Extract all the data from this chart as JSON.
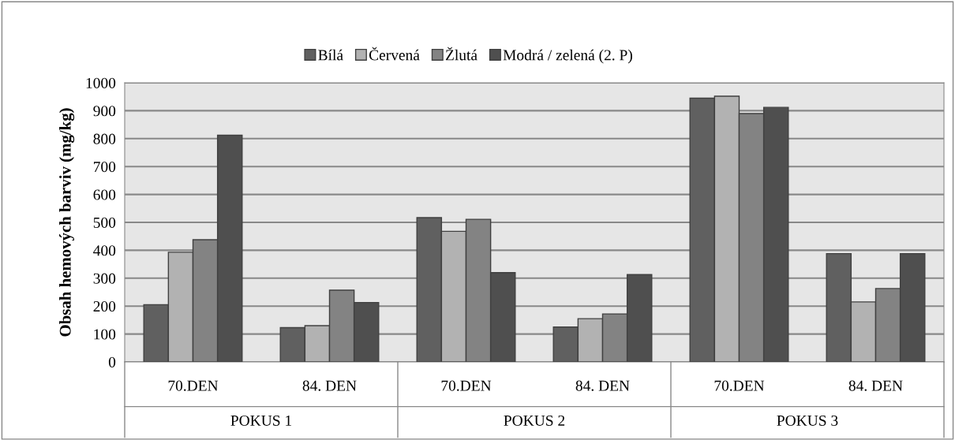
{
  "chart_data": {
    "type": "bar",
    "ylabel": "Obsah hemových barviv (mg/kg)",
    "categories": [
      "70.DEN",
      "84. DEN",
      "70.DEN",
      "84. DEN",
      "70.DEN",
      "84. DEN"
    ],
    "series": [
      {
        "name": "Bílá",
        "color": "#606060",
        "values": [
          205,
          123,
          517,
          125,
          945,
          388
        ]
      },
      {
        "name": "Červená",
        "color": "#b2b2b2",
        "values": [
          393,
          130,
          468,
          155,
          952,
          215
        ]
      },
      {
        "name": "Žlutá",
        "color": "#838383",
        "values": [
          438,
          257,
          511,
          172,
          890,
          263
        ]
      },
      {
        "name": "Modrá / zelená (2. P)",
        "color": "#4f4f4f",
        "values": [
          812,
          213,
          320,
          313,
          912,
          388
        ]
      }
    ],
    "annotations": [
      "POKUS 1",
      "POKUS 2",
      "POKUS 3"
    ],
    "ylim": [
      0,
      1000
    ],
    "yticks": [
      0,
      100,
      200,
      300,
      400,
      500,
      600,
      700,
      800,
      900,
      1000
    ],
    "grid": "y",
    "legend": "top"
  }
}
